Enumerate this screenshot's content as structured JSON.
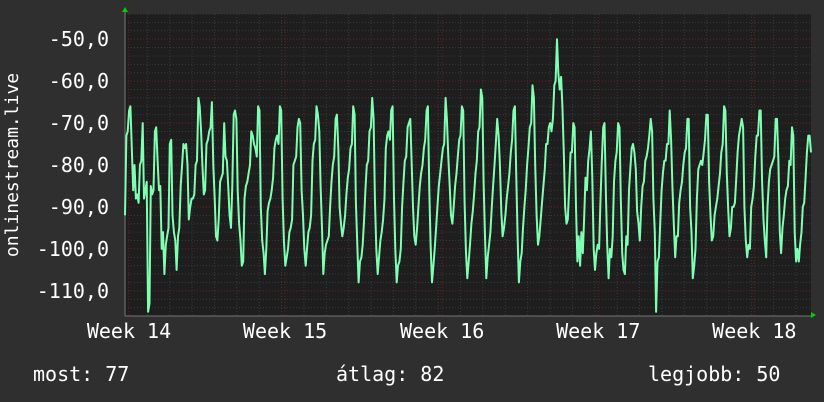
{
  "chart_data": {
    "type": "line",
    "ylabel": "onlinestream.live",
    "ylim": [
      -116,
      -44
    ],
    "yticks": [
      -110,
      -100,
      -90,
      -80,
      -70,
      -60,
      -50
    ],
    "ytick_labels": [
      "-110,0",
      "-100,0",
      "-90,0",
      "-80,0",
      "-70,0",
      "-60,0",
      "-50,0"
    ],
    "xlim": [
      0,
      690
    ],
    "xticks": [
      {
        "x": 4,
        "label": "Week 14"
      },
      {
        "x": 161,
        "label": "Week 15"
      },
      {
        "x": 319,
        "label": "Week 16"
      },
      {
        "x": 476,
        "label": "Week 17"
      },
      {
        "x": 633,
        "label": "Week 18"
      }
    ],
    "grid": true,
    "line_color": "#7fffb2",
    "series": [
      {
        "values": [
          -92,
          -73,
          -72,
          -67,
          -66,
          -76,
          -86,
          -80,
          -88,
          -87,
          -89,
          -80,
          -79,
          -70,
          -88,
          -86,
          -84,
          -115,
          -113,
          -85,
          -87,
          -86,
          -72,
          -71,
          -79,
          -86,
          -85,
          -100,
          -96,
          -106,
          -99,
          -97,
          -95,
          -75,
          -74,
          -92,
          -96,
          -98,
          -105,
          -97,
          -95,
          -85,
          -80,
          -75,
          -76,
          -75,
          -80,
          -93,
          -90,
          -88,
          -88,
          -87,
          -80,
          -79,
          -64,
          -66,
          -72,
          -80,
          -87,
          -86,
          -75,
          -74,
          -72,
          -71,
          -65,
          -80,
          -88,
          -97,
          -98,
          -93,
          -84,
          -83,
          -82,
          -70,
          -78,
          -79,
          -85,
          -92,
          -95,
          -85,
          -68,
          -67,
          -69,
          -86,
          -94,
          -98,
          -104,
          -103,
          -88,
          -85,
          -84,
          -82,
          -80,
          -72,
          -73,
          -75,
          -76,
          -78,
          -66,
          -67,
          -90,
          -98,
          -101,
          -106,
          -100,
          -91,
          -89,
          -88,
          -86,
          -83,
          -76,
          -74,
          -73,
          -75,
          -66,
          -67,
          -88,
          -98,
          -104,
          -102,
          -100,
          -96,
          -95,
          -93,
          -80,
          -79,
          -78,
          -71,
          -69,
          -70,
          -86,
          -92,
          -100,
          -104,
          -100,
          -96,
          -95,
          -92,
          -79,
          -75,
          -74,
          -66,
          -68,
          -72,
          -85,
          -95,
          -106,
          -101,
          -99,
          -98,
          -97,
          -90,
          -84,
          -80,
          -78,
          -69,
          -68,
          -76,
          -90,
          -94,
          -97,
          -95,
          -92,
          -87,
          -83,
          -81,
          -76,
          -75,
          -66,
          -68,
          -89,
          -99,
          -108,
          -103,
          -102,
          -99,
          -93,
          -86,
          -80,
          -79,
          -72,
          -71,
          -64,
          -69,
          -88,
          -100,
          -106,
          -102,
          -98,
          -96,
          -93,
          -88,
          -76,
          -73,
          -72,
          -74,
          -67,
          -66,
          -88,
          -100,
          -108,
          -104,
          -103,
          -100,
          -90,
          -84,
          -79,
          -78,
          -71,
          -70,
          -69,
          -79,
          -90,
          -97,
          -99,
          -95,
          -90,
          -85,
          -82,
          -80,
          -76,
          -74,
          -67,
          -66,
          -86,
          -99,
          -108,
          -104,
          -100,
          -95,
          -90,
          -85,
          -82,
          -79,
          -76,
          -75,
          -64,
          -69,
          -78,
          -85,
          -92,
          -94,
          -90,
          -85,
          -82,
          -78,
          -74,
          -73,
          -66,
          -67,
          -89,
          -101,
          -107,
          -103,
          -99,
          -94,
          -91,
          -87,
          -82,
          -79,
          -72,
          -71,
          -62,
          -64,
          -84,
          -97,
          -107,
          -102,
          -99,
          -96,
          -90,
          -85,
          -80,
          -75,
          -69,
          -73,
          -80,
          -91,
          -97,
          -95,
          -92,
          -88,
          -85,
          -82,
          -77,
          -74,
          -67,
          -66,
          -82,
          -97,
          -108,
          -103,
          -101,
          -95,
          -90,
          -86,
          -80,
          -76,
          -71,
          -70,
          -61,
          -64,
          -80,
          -92,
          -99,
          -97,
          -93,
          -89,
          -85,
          -81,
          -75,
          -75,
          -71,
          -70,
          -72,
          -69,
          -61,
          -60,
          -50,
          -58,
          -62,
          -59,
          -66,
          -77,
          -90,
          -94,
          -93,
          -85,
          -77,
          -77,
          -70,
          -71,
          -90,
          -103,
          -97,
          -104,
          -96,
          -101,
          -93,
          -83,
          -86,
          -79,
          -76,
          -72,
          -83,
          -100,
          -105,
          -101,
          -99,
          -100,
          -89,
          -79,
          -71,
          -70,
          -87,
          -99,
          -107,
          -100,
          -102,
          -97,
          -84,
          -79,
          -77,
          -70,
          -71,
          -88,
          -101,
          -105,
          -106,
          -97,
          -99,
          -86,
          -81,
          -76,
          -75,
          -77,
          -81,
          -91,
          -94,
          -98,
          -90,
          -85,
          -84,
          -79,
          -78,
          -76,
          -73,
          -69,
          -72,
          -88,
          -96,
          -115,
          -103,
          -102,
          -94,
          -86,
          -82,
          -79,
          -79,
          -75,
          -75,
          -67,
          -74,
          -85,
          -94,
          -102,
          -97,
          -97,
          -89,
          -86,
          -84,
          -80,
          -77,
          -76,
          -69,
          -69,
          -90,
          -96,
          -107,
          -104,
          -100,
          -88,
          -81,
          -80,
          -79,
          -80,
          -77,
          -74,
          -68,
          -68,
          -84,
          -92,
          -98,
          -97,
          -92,
          -90,
          -88,
          -85,
          -82,
          -77,
          -75,
          -66,
          -67,
          -82,
          -90,
          -97,
          -95,
          -90,
          -90,
          -89,
          -83,
          -77,
          -73,
          -71,
          -69,
          -71,
          -90,
          -98,
          -102,
          -99,
          -100,
          -90,
          -88,
          -85,
          -78,
          -73,
          -73,
          -67,
          -67,
          -84,
          -93,
          -98,
          -102,
          -90,
          -84,
          -81,
          -80,
          -79,
          -78,
          -69,
          -69,
          -79,
          -96,
          -101,
          -95,
          -92,
          -88,
          -86,
          -85,
          -79,
          -80,
          -71,
          -73,
          -96,
          -103,
          -100,
          -103,
          -99,
          -96,
          -90,
          -89,
          -83,
          -77,
          -73,
          -73,
          -77
        ]
      }
    ]
  },
  "stats": {
    "current": "most: 77",
    "average": "átlag: 82",
    "max": "legjobb: 50"
  }
}
